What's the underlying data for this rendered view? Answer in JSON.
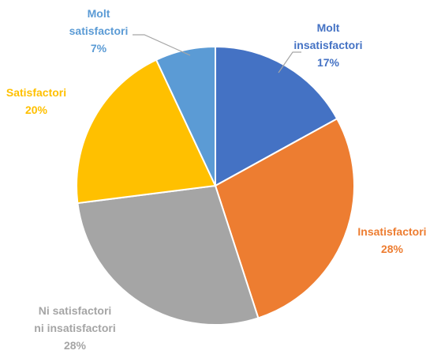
{
  "chart_data": {
    "type": "pie",
    "title": "",
    "slices": [
      {
        "lines": [
          "Molt",
          "insatisfactori"
        ],
        "value": 17,
        "value_label": "17%",
        "color": "#4472C4"
      },
      {
        "lines": [
          "Insatisfactori"
        ],
        "value": 28,
        "value_label": "28%",
        "color": "#ED7D31"
      },
      {
        "lines": [
          "Ni satisfactori",
          "ni insatisfactori"
        ],
        "value": 28,
        "value_label": "28%",
        "color": "#A5A5A5"
      },
      {
        "lines": [
          "Satisfactori"
        ],
        "value": 20,
        "value_label": "20%",
        "color": "#FFC000"
      },
      {
        "lines": [
          "Molt",
          "satisfactori"
        ],
        "value": 7,
        "value_label": "7%",
        "color": "#5B9BD5"
      }
    ],
    "start_angle_deg": 0,
    "direction": "clockwise",
    "legend": "none"
  }
}
